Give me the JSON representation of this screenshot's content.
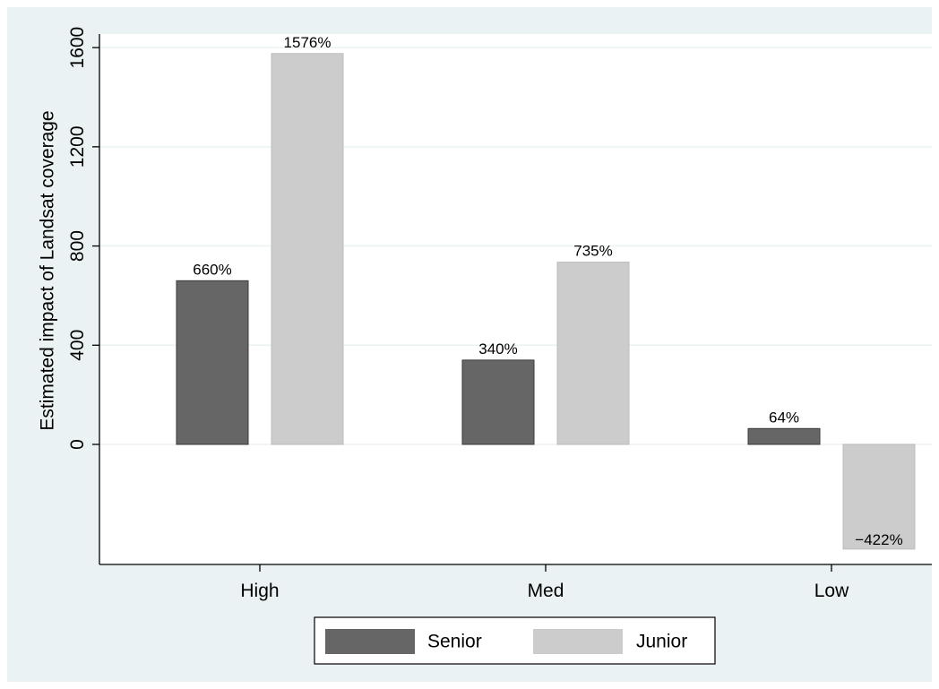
{
  "colors": {
    "background": "#eaf2f3",
    "plot_area": "#ffffff",
    "gridline": "#eaf2f3",
    "senior": "#666666",
    "junior": "#cccccc"
  },
  "chart_data": {
    "type": "bar",
    "title": "",
    "xlabel": "",
    "ylabel": "Estimated impact of Landsat coverage",
    "categories": [
      "High",
      "Med",
      "Low"
    ],
    "series": [
      {
        "name": "Senior",
        "values": [
          660,
          340,
          64
        ],
        "labels": [
          "660%",
          "340%",
          "64%"
        ]
      },
      {
        "name": "Junior",
        "values": [
          1576,
          735,
          -422
        ],
        "labels": [
          "1576%",
          "735%",
          "−422%"
        ]
      }
    ],
    "yticks": [
      0,
      400,
      800,
      1200,
      1600
    ],
    "ytick_labels": [
      "0",
      "400",
      "800",
      "1200",
      "1600"
    ],
    "ylim": [
      -470,
      1600
    ],
    "grid": true,
    "legend": "bottom"
  }
}
